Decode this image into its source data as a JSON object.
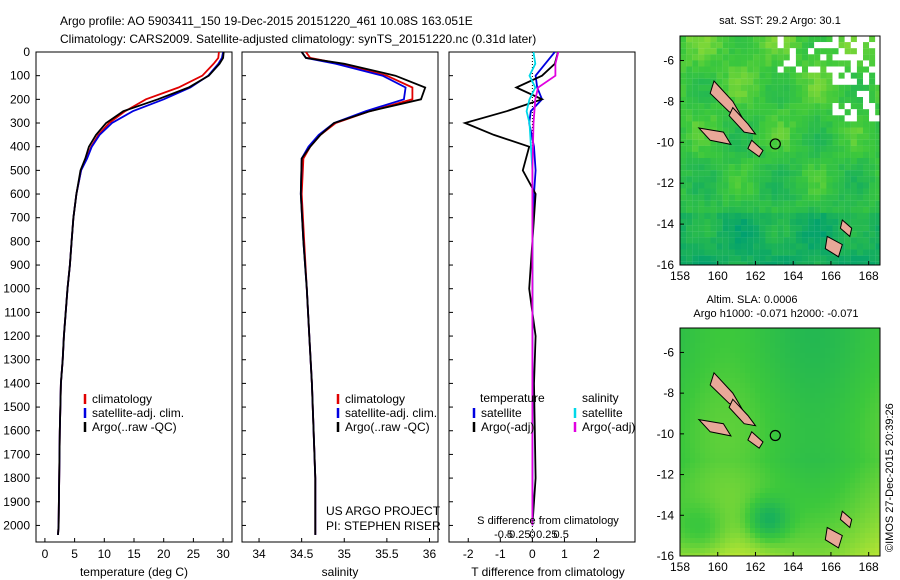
{
  "header": {
    "line1": "Argo profile: AO 5903411_150 19-Dec-2015 20151220_461 10.08S 163.051E",
    "line2": "Climatology: CARS2009. Satellite-adjusted climatology: synTS_20151220.nc (0.31d later)"
  },
  "depth_ticks": [
    "0",
    "100",
    "200",
    "300",
    "400",
    "500",
    "600",
    "700",
    "800",
    "900",
    "1000",
    "1100",
    "1200",
    "1300",
    "1400",
    "1500",
    "1600",
    "1700",
    "1800",
    "1900",
    "2000"
  ],
  "colors": {
    "climatology": "#e00000",
    "satellite": "#0000e0",
    "argo": "#000000",
    "sal_satellite": "#00d8e8",
    "sal_argo": "#e000e0",
    "map_dark": "#00a070",
    "map_mid": "#3cc83c",
    "map_light": "#e6f030",
    "land": "#e8a898"
  },
  "panels": {
    "temperature": {
      "xlabel": "temperature (deg C)",
      "ticks": [
        "0",
        "5",
        "10",
        "15",
        "20",
        "25",
        "30"
      ],
      "legend": [
        "climatology",
        "satellite-adj. clim.",
        "Argo(..raw -QC)"
      ]
    },
    "salinity": {
      "xlabel": "salinity",
      "ticks": [
        "34",
        "34.5",
        "35",
        "35.5",
        "36"
      ],
      "legend": [
        "climatology",
        "satellite-adj. clim.",
        "Argo(..raw -QC)"
      ],
      "project_line1": "US ARGO PROJECT",
      "project_line2": "PI: STEPHEN RISER"
    },
    "difference": {
      "xlabel": "T difference from climatology",
      "top_label": "S difference from climatology",
      "top_ticks": [
        "-0.5",
        "-0.25",
        "0",
        "0.25",
        "0.5"
      ],
      "bottom_ticks": [
        "-2",
        "-1",
        "0",
        "1",
        "2"
      ],
      "legend_temp_header": "temperature",
      "legend_sal_header": "salinity",
      "legend_temp": [
        "satellite",
        "Argo(-adj)"
      ],
      "legend_sal": [
        "satellite",
        "Argo(-adj)"
      ]
    }
  },
  "maps": {
    "sst": {
      "title": "sat. SST: 29.2  Argo: 30.1",
      "yticks": [
        "-6",
        "-8",
        "-10",
        "-12",
        "-14",
        "-16"
      ],
      "xticks": [
        "158",
        "160",
        "162",
        "164",
        "166",
        "168"
      ]
    },
    "sla": {
      "title1": "Altim. SLA: 0.0006",
      "title2": "Argo h1000: -0.071 h2000: -0.071",
      "yticks": [
        "-6",
        "-8",
        "-10",
        "-12",
        "-14",
        "-16"
      ],
      "xticks": [
        "158",
        "160",
        "162",
        "164",
        "166",
        "168"
      ]
    },
    "float_position": {
      "lon": 163.051,
      "lat": -10.08
    }
  },
  "credit": "©IMOS 27-Dec-2015 20:39:26",
  "chart_data": [
    {
      "type": "line",
      "name": "temperature",
      "xlabel": "temperature (deg C)",
      "ylabel": "",
      "xlim": [
        -1.5,
        31.5
      ],
      "ylim": [
        2070,
        0
      ],
      "series": [
        {
          "name": "climatology",
          "x": [
            29.3,
            29.2,
            28.4,
            26.5,
            22.5,
            17,
            13.5,
            10.8,
            9,
            7.8,
            7,
            6.1,
            5.3,
            4.8,
            4.5,
            4.2,
            3.8,
            3.5,
            3.2,
            3.0,
            2.7,
            2.5,
            2.4,
            2.3,
            2.2
          ],
          "y": [
            0,
            25,
            50,
            100,
            150,
            200,
            250,
            300,
            350,
            400,
            450,
            500,
            600,
            700,
            800,
            900,
            1000,
            1100,
            1200,
            1300,
            1400,
            1600,
            1800,
            2000,
            2040
          ]
        },
        {
          "name": "satellite-adj. clim.",
          "x": [
            30,
            29.8,
            29.2,
            27.5,
            24.5,
            20,
            14.8,
            11.3,
            9.2,
            7.9,
            7.1,
            6.1,
            5.3,
            4.8,
            4.5,
            4.2,
            3.8,
            3.5,
            3.2,
            3.0,
            2.7,
            2.5,
            2.4,
            2.3,
            2.2
          ],
          "y": [
            0,
            25,
            50,
            100,
            150,
            200,
            250,
            300,
            350,
            400,
            450,
            500,
            600,
            700,
            800,
            900,
            1000,
            1100,
            1200,
            1300,
            1400,
            1600,
            1800,
            2000,
            2040
          ]
        },
        {
          "name": "Argo(..raw -QC)",
          "x": [
            30.1,
            30.0,
            29.4,
            27.6,
            24.2,
            19,
            13.2,
            10.3,
            8.6,
            7.4,
            6.8,
            6.0,
            5.3,
            4.8,
            4.5,
            4.2,
            3.8,
            3.5,
            3.2,
            3.0,
            2.7,
            2.5,
            2.4,
            2.3,
            2.2
          ],
          "y": [
            0,
            25,
            50,
            100,
            150,
            200,
            250,
            300,
            350,
            400,
            450,
            500,
            600,
            700,
            800,
            900,
            1000,
            1100,
            1200,
            1300,
            1400,
            1600,
            1800,
            2000,
            2040
          ]
        }
      ]
    },
    {
      "type": "line",
      "name": "salinity",
      "xlabel": "salinity",
      "ylabel": "",
      "xlim": [
        33.8,
        36.1
      ],
      "ylim": [
        2070,
        0
      ],
      "series": [
        {
          "name": "climatology",
          "x": [
            34.55,
            34.6,
            34.95,
            35.5,
            35.8,
            35.8,
            35.3,
            34.9,
            34.72,
            34.6,
            34.52,
            34.5,
            34.53,
            34.56,
            34.59,
            34.62,
            34.64,
            34.66,
            34.66
          ],
          "y": [
            0,
            25,
            50,
            100,
            150,
            200,
            250,
            300,
            350,
            400,
            450,
            600,
            800,
            1000,
            1200,
            1400,
            1600,
            1800,
            2040
          ]
        },
        {
          "name": "satellite-adj. clim.",
          "x": [
            34.5,
            34.55,
            34.9,
            35.45,
            35.72,
            35.7,
            35.25,
            34.88,
            34.7,
            34.58,
            34.5,
            34.49,
            34.52,
            34.56,
            34.59,
            34.62,
            34.64,
            34.66,
            34.66
          ],
          "y": [
            0,
            25,
            50,
            100,
            150,
            200,
            250,
            300,
            350,
            400,
            450,
            600,
            800,
            1000,
            1200,
            1400,
            1600,
            1800,
            2040
          ]
        },
        {
          "name": "Argo(..raw -QC)",
          "x": [
            34.5,
            34.55,
            35.0,
            35.6,
            35.95,
            35.9,
            35.3,
            34.88,
            34.72,
            34.6,
            34.5,
            34.49,
            34.52,
            34.56,
            34.59,
            34.62,
            34.64,
            34.66,
            34.66
          ],
          "y": [
            0,
            25,
            50,
            100,
            150,
            200,
            250,
            300,
            350,
            400,
            450,
            600,
            800,
            1000,
            1200,
            1400,
            1600,
            1800,
            2040
          ]
        }
      ]
    },
    {
      "type": "line",
      "name": "difference",
      "xlabel": "T difference from climatology",
      "ylabel": "",
      "xlim": [
        -2.6,
        3.2
      ],
      "ylim": [
        2070,
        0
      ],
      "series": [
        {
          "name": "temperature satellite",
          "x": [
            0.7,
            0.4,
            0.1,
            0.15,
            0.3,
            -0.05,
            -0.1,
            0.05,
            0.1,
            0.05,
            0,
            0,
            0,
            0,
            0
          ],
          "y": [
            0,
            50,
            100,
            150,
            200,
            250,
            300,
            400,
            500,
            600,
            800,
            1000,
            1400,
            1800,
            2000
          ]
        },
        {
          "name": "temperature Argo(-adj)",
          "x": [
            0.8,
            0.7,
            0.3,
            -0.5,
            0.3,
            -0.8,
            -2.1,
            -1.2,
            -0.1,
            -0.3,
            0.1,
            0,
            -0.1,
            0.1,
            0.05,
            0.1,
            0
          ],
          "y": [
            0,
            50,
            100,
            150,
            200,
            250,
            300,
            350,
            400,
            500,
            600,
            800,
            1000,
            1200,
            1400,
            1800,
            2000
          ]
        },
        {
          "name": "salinity satellite",
          "x": [
            0.02,
            0.05,
            -0.05,
            0.05,
            -0.05,
            -0.1,
            -0.05,
            0,
            0,
            0
          ],
          "y": [
            0,
            50,
            100,
            150,
            200,
            250,
            300,
            500,
            1000,
            2000
          ]
        },
        {
          "name": "salinity Argo(-adj)",
          "x": [
            0.45,
            0.4,
            0.4,
            0.1,
            0.05,
            0.02,
            0,
            0
          ],
          "y": [
            0,
            50,
            100,
            150,
            200,
            300,
            500,
            2000
          ]
        }
      ]
    }
  ]
}
